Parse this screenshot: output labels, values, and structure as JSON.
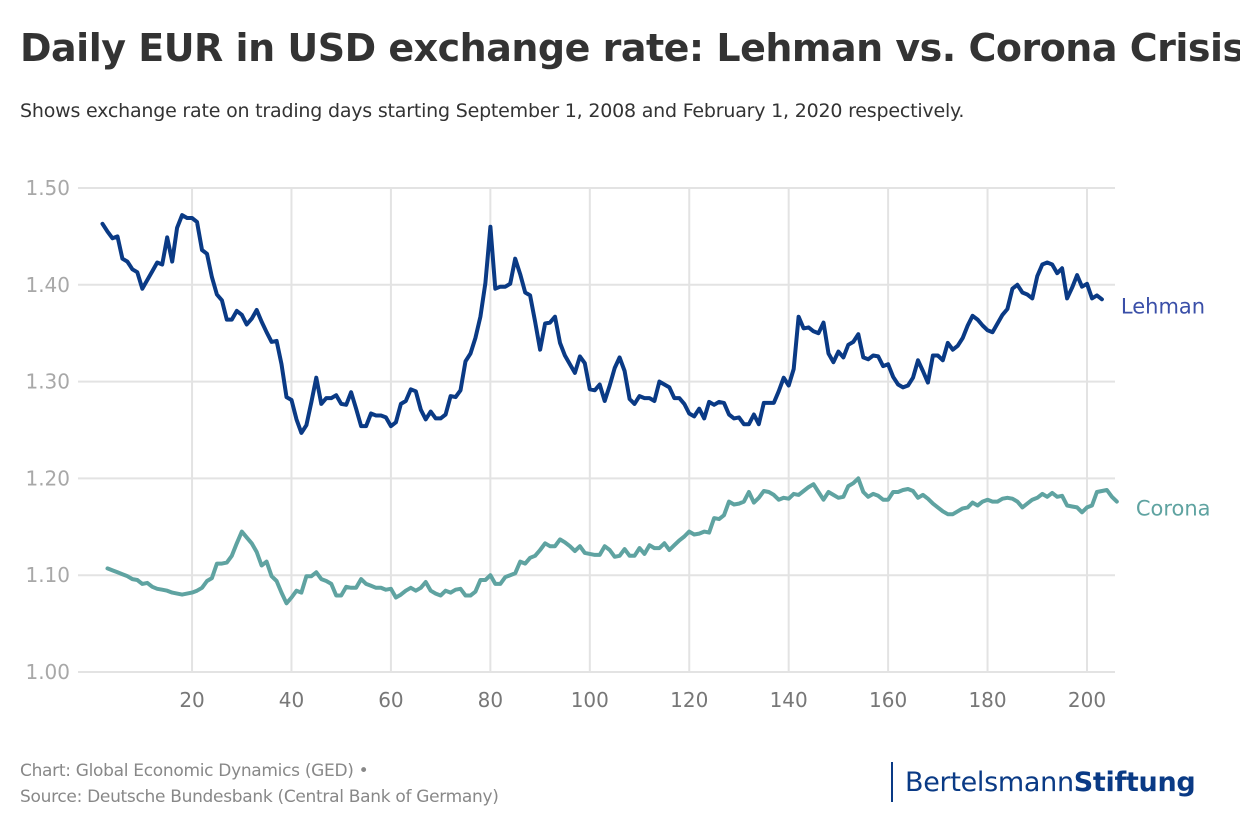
{
  "header": {
    "title": "Daily EUR in USD exchange rate: Lehman vs. Corona Crisis",
    "subtitle": "Shows exchange rate on trading days starting September 1, 2008 and February 1, 2020 respectively."
  },
  "footer": {
    "credit": "Chart: Global Economic Dynamics (GED) •",
    "source": "Source: Deutsche Bundesbank (Central Bank of Germany)"
  },
  "logo": {
    "part1": "Bertelsmann",
    "part2": "Stiftung",
    "color": "#0a3a85"
  },
  "chart_data": {
    "type": "line",
    "title": "Daily EUR in USD exchange rate: Lehman vs. Corona Crisis",
    "xlabel": "",
    "ylabel": "",
    "xlim": [
      0,
      205.6
    ],
    "ylim": [
      1.0,
      1.5
    ],
    "x_ticks": [
      20,
      40,
      60,
      80,
      100,
      120,
      140,
      160,
      180,
      200
    ],
    "x_tick_labels": [
      "20",
      "40",
      "60",
      "80",
      "100",
      "120",
      "140",
      "160",
      "180",
      "200"
    ],
    "y_ticks": [
      1.0,
      1.1,
      1.2,
      1.3,
      1.4,
      1.5
    ],
    "y_tick_labels": [
      "1.00",
      "1.10",
      "1.20",
      "1.30",
      "1.40",
      "1.50"
    ],
    "grid": true,
    "legend": "direct labels at line ends (right)",
    "series": [
      {
        "name": "Lehman",
        "color": "#0a3a85",
        "label_color": "#3a4fa8",
        "x_start": 2,
        "values": [
          1.463,
          1.455,
          1.448,
          1.45,
          1.427,
          1.424,
          1.416,
          1.413,
          1.396,
          1.405,
          1.414,
          1.423,
          1.421,
          1.449,
          1.424,
          1.459,
          1.472,
          1.469,
          1.469,
          1.465,
          1.436,
          1.432,
          1.408,
          1.39,
          1.384,
          1.364,
          1.364,
          1.373,
          1.369,
          1.359,
          1.365,
          1.374,
          1.362,
          1.351,
          1.341,
          1.342,
          1.318,
          1.284,
          1.281,
          1.261,
          1.247,
          1.255,
          1.279,
          1.304,
          1.277,
          1.283,
          1.283,
          1.286,
          1.277,
          1.276,
          1.289,
          1.272,
          1.254,
          1.254,
          1.267,
          1.265,
          1.265,
          1.263,
          1.254,
          1.258,
          1.277,
          1.28,
          1.292,
          1.29,
          1.271,
          1.261,
          1.269,
          1.262,
          1.262,
          1.266,
          1.285,
          1.284,
          1.291,
          1.321,
          1.329,
          1.345,
          1.367,
          1.402,
          1.46,
          1.396,
          1.398,
          1.398,
          1.401,
          1.427,
          1.411,
          1.392,
          1.389,
          1.362,
          1.333,
          1.36,
          1.361,
          1.367,
          1.34,
          1.327,
          1.318,
          1.309,
          1.326,
          1.319,
          1.292,
          1.291,
          1.297,
          1.28,
          1.296,
          1.314,
          1.325,
          1.311,
          1.282,
          1.277,
          1.285,
          1.283,
          1.283,
          1.28,
          1.3,
          1.297,
          1.294,
          1.283,
          1.283,
          1.277,
          1.267,
          1.264,
          1.272,
          1.262,
          1.279,
          1.276,
          1.279,
          1.278,
          1.266,
          1.262,
          1.263,
          1.256,
          1.256,
          1.266,
          1.256,
          1.278,
          1.278,
          1.278,
          1.29,
          1.304,
          1.296,
          1.313,
          1.367,
          1.355,
          1.356,
          1.352,
          1.35,
          1.361,
          1.329,
          1.32,
          1.331,
          1.325,
          1.338,
          1.341,
          1.349,
          1.325,
          1.323,
          1.327,
          1.326,
          1.316,
          1.318,
          1.305,
          1.297,
          1.294,
          1.296,
          1.304,
          1.322,
          1.311,
          1.299,
          1.327,
          1.327,
          1.322,
          1.34,
          1.333,
          1.337,
          1.345,
          1.358,
          1.368,
          1.364,
          1.358,
          1.353,
          1.351,
          1.36,
          1.369,
          1.375,
          1.396,
          1.4,
          1.392,
          1.39,
          1.386,
          1.409,
          1.421,
          1.423,
          1.421,
          1.412,
          1.417,
          1.386,
          1.397,
          1.41,
          1.398,
          1.401,
          1.386,
          1.389,
          1.385
        ]
      },
      {
        "name": "Corona",
        "color": "#5fa3a1",
        "label_color": "#5fa3a1",
        "x_start": 3,
        "values": [
          1.107,
          1.105,
          1.103,
          1.101,
          1.099,
          1.096,
          1.095,
          1.091,
          1.092,
          1.088,
          1.086,
          1.085,
          1.084,
          1.082,
          1.081,
          1.08,
          1.081,
          1.082,
          1.084,
          1.087,
          1.094,
          1.097,
          1.112,
          1.112,
          1.113,
          1.12,
          1.133,
          1.145,
          1.139,
          1.133,
          1.124,
          1.11,
          1.114,
          1.099,
          1.094,
          1.082,
          1.071,
          1.077,
          1.084,
          1.082,
          1.099,
          1.099,
          1.103,
          1.096,
          1.094,
          1.091,
          1.079,
          1.079,
          1.088,
          1.087,
          1.087,
          1.096,
          1.091,
          1.089,
          1.087,
          1.087,
          1.085,
          1.086,
          1.077,
          1.08,
          1.084,
          1.087,
          1.084,
          1.087,
          1.093,
          1.084,
          1.081,
          1.079,
          1.084,
          1.082,
          1.085,
          1.086,
          1.079,
          1.079,
          1.083,
          1.095,
          1.095,
          1.1,
          1.091,
          1.091,
          1.098,
          1.1,
          1.102,
          1.114,
          1.112,
          1.118,
          1.12,
          1.126,
          1.133,
          1.13,
          1.13,
          1.137,
          1.134,
          1.13,
          1.125,
          1.13,
          1.123,
          1.122,
          1.121,
          1.121,
          1.13,
          1.126,
          1.119,
          1.12,
          1.127,
          1.12,
          1.12,
          1.128,
          1.122,
          1.131,
          1.128,
          1.128,
          1.133,
          1.126,
          1.131,
          1.136,
          1.14,
          1.145,
          1.142,
          1.143,
          1.145,
          1.144,
          1.159,
          1.158,
          1.162,
          1.176,
          1.173,
          1.174,
          1.176,
          1.186,
          1.175,
          1.18,
          1.187,
          1.186,
          1.183,
          1.178,
          1.18,
          1.179,
          1.184,
          1.183,
          1.187,
          1.191,
          1.194,
          1.186,
          1.178,
          1.186,
          1.183,
          1.18,
          1.181,
          1.192,
          1.195,
          1.2,
          1.186,
          1.181,
          1.184,
          1.182,
          1.178,
          1.178,
          1.186,
          1.186,
          1.188,
          1.189,
          1.187,
          1.18,
          1.183,
          1.179,
          1.174,
          1.17,
          1.166,
          1.163,
          1.163,
          1.166,
          1.169,
          1.17,
          1.175,
          1.172,
          1.176,
          1.178,
          1.176,
          1.176,
          1.179,
          1.18,
          1.179,
          1.176,
          1.17,
          1.174,
          1.178,
          1.18,
          1.184,
          1.181,
          1.185,
          1.181,
          1.182,
          1.172,
          1.171,
          1.17,
          1.165,
          1.17,
          1.172,
          1.186,
          1.187,
          1.188,
          1.181,
          1.176
        ]
      }
    ]
  }
}
